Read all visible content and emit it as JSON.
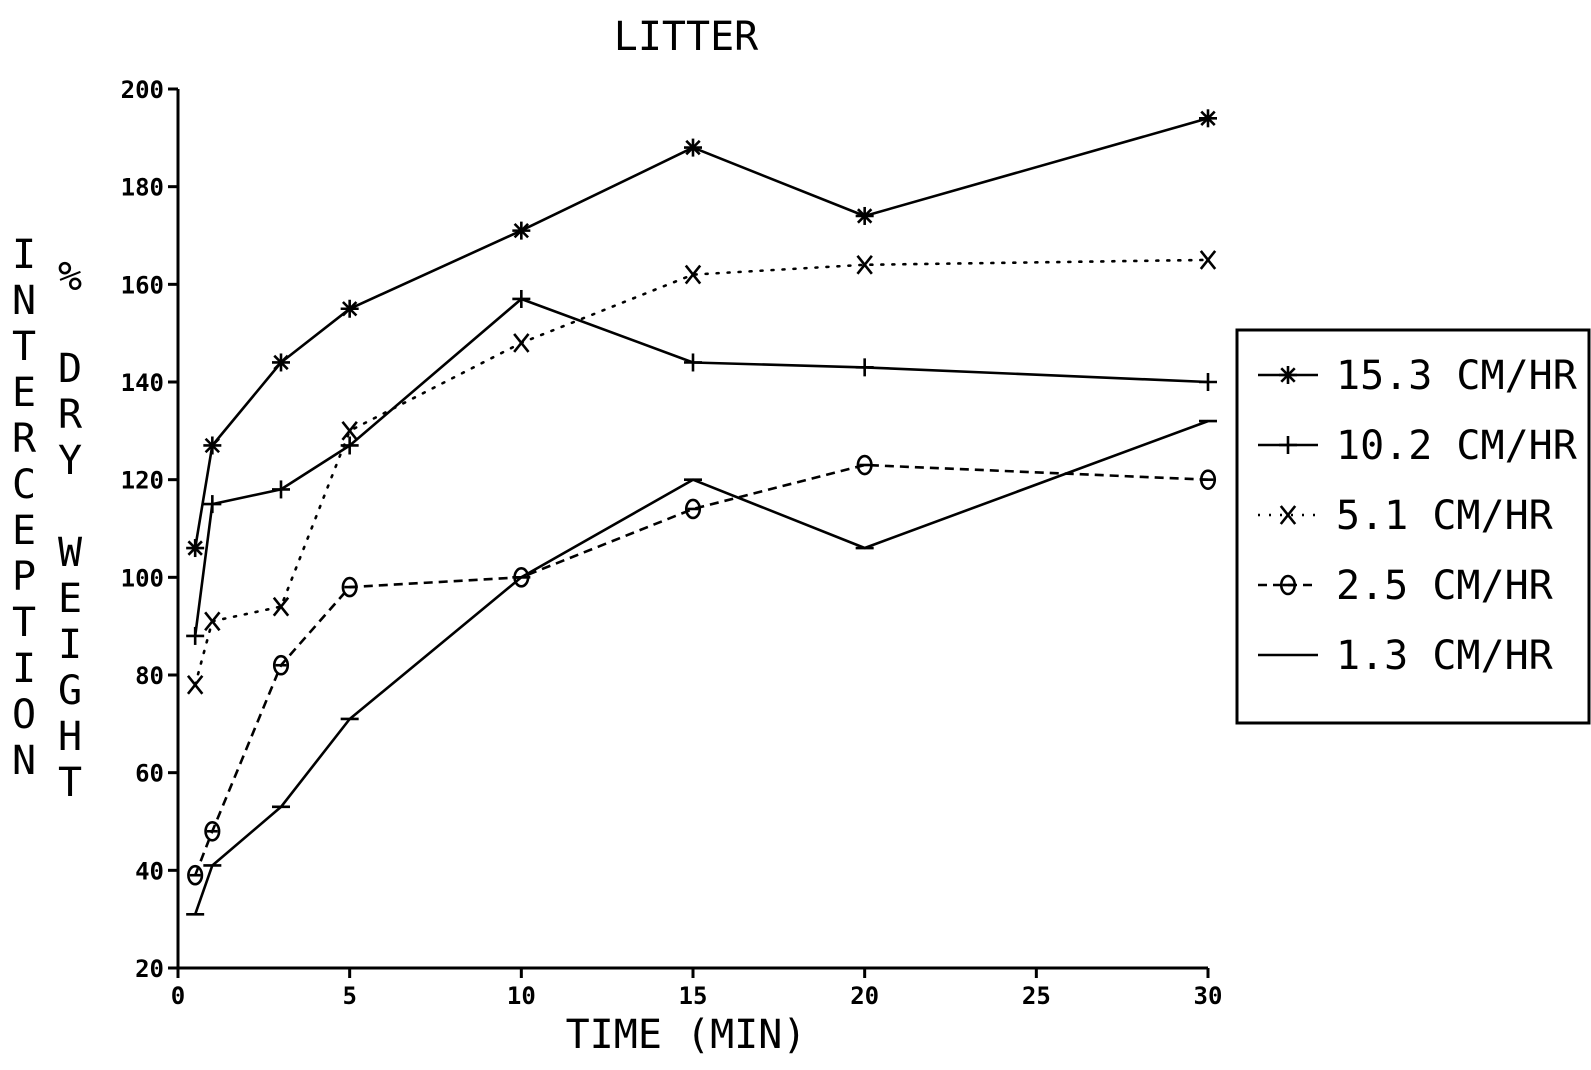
{
  "chart_data": {
    "type": "line",
    "title": "LITTER",
    "xlabel": "TIME (MIN)",
    "ylabel": "INTERCEPTION % DRY WEIGHT",
    "ylabel_col1": "INTERCEPTION",
    "ylabel_col2": "%",
    "ylabel_col2b": "DRY",
    "ylabel_col2c": "WEIGHT",
    "xlim": [
      0,
      30
    ],
    "ylim": [
      20,
      200
    ],
    "x_ticks": [
      0,
      5,
      10,
      15,
      20,
      25,
      30
    ],
    "y_ticks": [
      20,
      40,
      60,
      80,
      100,
      120,
      140,
      160,
      180,
      200
    ],
    "grid": false,
    "legend_position": "right",
    "series": [
      {
        "name": "15.3 CM/HR",
        "marker": "star",
        "line": "solid",
        "x": [
          0.5,
          1,
          3,
          5,
          10,
          15,
          20,
          30
        ],
        "y": [
          106,
          127,
          144,
          155,
          171,
          188,
          174,
          194
        ]
      },
      {
        "name": "10.2 CM/HR",
        "marker": "plus",
        "line": "solid",
        "x": [
          0.5,
          1,
          3,
          5,
          10,
          15,
          20,
          30
        ],
        "y": [
          88,
          115,
          118,
          127,
          157,
          144,
          143,
          140
        ]
      },
      {
        "name": "5.1 CM/HR",
        "marker": "x",
        "line": "dotted",
        "x": [
          0.5,
          1,
          3,
          5,
          10,
          15,
          20,
          30
        ],
        "y": [
          78,
          91,
          94,
          130,
          148,
          162,
          164,
          165
        ]
      },
      {
        "name": "2.5 CM/HR",
        "marker": "circle",
        "line": "dashed",
        "x": [
          0.5,
          1,
          3,
          5,
          10,
          15,
          20,
          30
        ],
        "y": [
          39,
          48,
          82,
          98,
          100,
          114,
          123,
          120
        ]
      },
      {
        "name": "1.3 CM/HR",
        "marker": "dash",
        "line": "solid",
        "x": [
          0.5,
          1,
          3,
          5,
          10,
          15,
          20,
          30
        ],
        "y": [
          31,
          41,
          53,
          71,
          100,
          120,
          106,
          132
        ]
      }
    ],
    "colors": {
      "line": "#000000",
      "background": "#ffffff"
    }
  }
}
